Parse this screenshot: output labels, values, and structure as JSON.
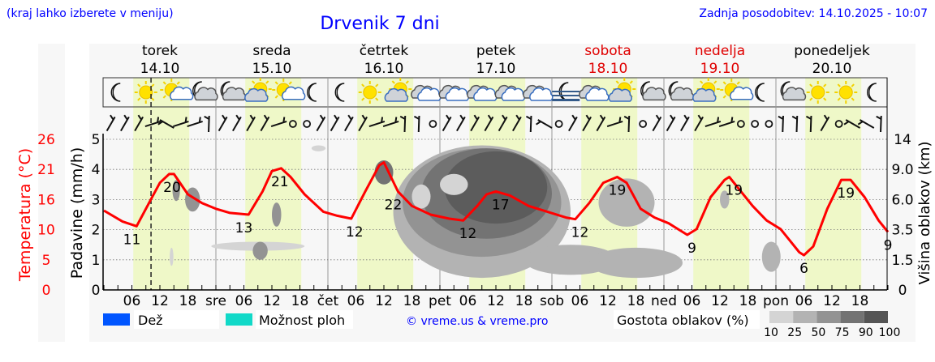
{
  "header": {
    "hint": "(kraj lahko izberete v meniju)",
    "title": "Drvenik 7 dni",
    "updated": "Zadnja posodobitev: 14.10.2025 - 10:07"
  },
  "colors": {
    "blue": "#0000ff",
    "red": "#ff0000",
    "rain": "#0055ff",
    "showers": "#11d9c8",
    "day_band": "#eff8c8",
    "panel": "#f7f7f7"
  },
  "chart_data": {
    "type": "line",
    "title": "Drvenik 7 dni",
    "now_hour": 10.1,
    "days": [
      {
        "name": "torek",
        "date": "14.10",
        "weekend": false,
        "abbr": ""
      },
      {
        "name": "sreda",
        "date": "15.10",
        "weekend": false,
        "abbr": "sre"
      },
      {
        "name": "četrtek",
        "date": "16.10",
        "weekend": false,
        "abbr": "čet"
      },
      {
        "name": "petek",
        "date": "17.10",
        "weekend": false,
        "abbr": "pet"
      },
      {
        "name": "sobota",
        "date": "18.10",
        "weekend": true,
        "abbr": "sob"
      },
      {
        "name": "nedelja",
        "date": "19.10",
        "weekend": true,
        "abbr": "ned"
      },
      {
        "name": "ponedeljek",
        "date": "20.10",
        "weekend": false,
        "abbr": "pon"
      }
    ],
    "hour_ticks": [
      "06",
      "12",
      "18"
    ],
    "y_left_temp": {
      "label": "Temperatura (°C)",
      "ticks": [
        "0",
        "5",
        "10",
        "16",
        "21",
        "26"
      ],
      "range": [
        0,
        26
      ]
    },
    "y_left_precip": {
      "label": "Padavine (mm/h)",
      "ticks": [
        "0",
        "1",
        "2",
        "3",
        "4",
        "5"
      ],
      "range": [
        0,
        5
      ]
    },
    "y_right_cloud": {
      "label": "Višina oblakov (km)",
      "ticks": [
        "0",
        "1.5",
        "3.5",
        "6.0",
        "9.0",
        "14"
      ]
    },
    "temperature": [
      [
        0,
        13.7
      ],
      [
        4,
        11.8
      ],
      [
        7,
        11
      ],
      [
        10,
        15.5
      ],
      [
        12,
        18.5
      ],
      [
        14,
        20
      ],
      [
        15,
        20
      ],
      [
        18,
        16.5
      ],
      [
        21,
        15
      ],
      [
        24,
        14
      ],
      [
        27,
        13.3
      ],
      [
        31,
        13
      ],
      [
        34,
        17
      ],
      [
        36,
        20.5
      ],
      [
        38,
        21
      ],
      [
        40,
        19.5
      ],
      [
        43,
        16.5
      ],
      [
        47,
        13.5
      ],
      [
        50,
        12.8
      ],
      [
        53,
        12.3
      ],
      [
        56,
        17
      ],
      [
        59,
        21.5
      ],
      [
        60,
        22
      ],
      [
        63,
        17
      ],
      [
        66,
        14.5
      ],
      [
        70,
        13
      ],
      [
        74,
        12.3
      ],
      [
        77,
        12
      ],
      [
        80,
        14.5
      ],
      [
        82,
        16.5
      ],
      [
        84,
        17
      ],
      [
        87,
        16.3
      ],
      [
        91,
        14.5
      ],
      [
        95,
        13.5
      ],
      [
        99,
        12.5
      ],
      [
        101,
        12.2
      ],
      [
        104,
        15
      ],
      [
        107,
        18.5
      ],
      [
        110,
        19.5
      ],
      [
        112,
        18.5
      ],
      [
        115,
        14
      ],
      [
        118,
        12.5
      ],
      [
        121,
        11.5
      ],
      [
        123,
        10.5
      ],
      [
        125,
        9.5
      ],
      [
        127,
        10.5
      ],
      [
        130,
        16
      ],
      [
        133,
        19
      ],
      [
        134,
        19.5
      ],
      [
        136,
        17.5
      ],
      [
        139,
        14.5
      ],
      [
        142,
        12
      ],
      [
        145,
        10.5
      ],
      [
        147,
        8.5
      ],
      [
        149,
        6.5
      ],
      [
        150,
        6
      ],
      [
        152,
        7.5
      ],
      [
        155,
        14
      ],
      [
        158,
        19
      ],
      [
        160,
        19
      ],
      [
        163,
        16
      ],
      [
        166,
        12
      ],
      [
        168,
        10
      ]
    ],
    "temp_labels": [
      {
        "h": 6,
        "t": "11"
      },
      {
        "h": 14.6,
        "t": "20"
      },
      {
        "h": 30,
        "t": "13"
      },
      {
        "h": 37.7,
        "t": "21"
      },
      {
        "h": 53.7,
        "t": "12"
      },
      {
        "h": 62,
        "t": "22"
      },
      {
        "h": 78,
        "t": "12"
      },
      {
        "h": 85,
        "t": "17"
      },
      {
        "h": 102,
        "t": "12"
      },
      {
        "h": 110,
        "t": "19"
      },
      {
        "h": 126,
        "t": "9"
      },
      {
        "h": 135,
        "t": "19"
      },
      {
        "h": 150,
        "t": "6"
      },
      {
        "h": 159,
        "t": "19"
      },
      {
        "h": 168,
        "t": "9"
      }
    ],
    "cloud_density": [
      {
        "h": 81,
        "y": 2.6,
        "rh": 19,
        "ry": 2.2,
        "d": 25
      },
      {
        "h": 81,
        "y": 2.9,
        "rh": 17,
        "ry": 1.8,
        "d": 50
      },
      {
        "h": 82,
        "y": 3.2,
        "rh": 14,
        "ry": 1.5,
        "d": 75
      },
      {
        "h": 84,
        "y": 3.4,
        "rh": 11,
        "ry": 1.2,
        "d": 90
      },
      {
        "h": 75,
        "y": 3.5,
        "rh": 3,
        "ry": 0.35,
        "d": 10
      },
      {
        "h": 68,
        "y": 3.1,
        "rh": 2,
        "ry": 0.4,
        "d": 10
      },
      {
        "h": 60,
        "y": 3.9,
        "rh": 2,
        "ry": 0.4,
        "d": 75
      },
      {
        "h": 100,
        "y": 1.0,
        "rh": 10,
        "ry": 0.5,
        "d": 25
      },
      {
        "h": 112,
        "y": 2.9,
        "rh": 6,
        "ry": 0.8,
        "d": 25
      },
      {
        "h": 114,
        "y": 0.9,
        "rh": 10,
        "ry": 0.5,
        "d": 25
      },
      {
        "h": 19,
        "y": 3.0,
        "rh": 1.6,
        "ry": 0.4,
        "d": 50
      },
      {
        "h": 15.5,
        "y": 3.3,
        "rh": 0.8,
        "ry": 0.35,
        "d": 50
      },
      {
        "h": 33,
        "y": 1.45,
        "rh": 10,
        "ry": 0.15,
        "d": 10
      },
      {
        "h": 33.5,
        "y": 1.3,
        "rh": 1.6,
        "ry": 0.3,
        "d": 50
      },
      {
        "h": 37,
        "y": 2.5,
        "rh": 1,
        "ry": 0.4,
        "d": 50
      },
      {
        "h": 46,
        "y": 4.7,
        "rh": 1.5,
        "ry": 0.1,
        "d": 10
      },
      {
        "h": 133,
        "y": 3.0,
        "rh": 1,
        "ry": 0.3,
        "d": 25
      },
      {
        "h": 143,
        "y": 1.1,
        "rh": 2,
        "ry": 0.5,
        "d": 25
      },
      {
        "h": 14.5,
        "y": 1.1,
        "rh": 0.4,
        "ry": 0.3,
        "d": 10
      }
    ],
    "weather_icons": [
      "moon",
      "sun",
      "sun-small-cloud",
      "moon-cloud",
      "moon-cloud",
      "cloud-sun",
      "sun-small-cloud",
      "moon",
      "moon",
      "sun",
      "cloud-sun",
      "cloudy",
      "cloudy",
      "cloudy",
      "cloudy",
      "cloudy",
      "moon-fog",
      "cloudy",
      "cloud-sun",
      "moon-cloud",
      "moon-cloud",
      "cloud-sun",
      "sun-small-cloud",
      "moon",
      "moon-cloud",
      "sun",
      "sun",
      "moon"
    ],
    "wind": [
      "/",
      "/",
      "/",
      "-",
      "\\",
      "-",
      "-",
      "|",
      "/",
      "/",
      "/",
      "/",
      "-",
      "o",
      "o",
      "/",
      "/",
      "/",
      "/",
      "-",
      "-",
      "|",
      "|",
      "o",
      "/",
      "/",
      "/",
      "/",
      "/",
      "/",
      "|",
      "\\",
      "o",
      "/",
      "/",
      "/",
      "-",
      "|",
      "o",
      "/",
      "/",
      "/",
      "/",
      "-",
      "-",
      "o",
      "o",
      "o",
      "|",
      "|",
      "|",
      "/",
      "o",
      "\\",
      "\\",
      "|"
    ]
  },
  "legend": {
    "rain": "Dež",
    "showers": "Možnost ploh",
    "copyright": "© vreme.us & vreme.pro",
    "cloud_density": "Gostota oblakov (%)",
    "density_levels": [
      "10",
      "25",
      "50",
      "75",
      "90",
      "100"
    ]
  }
}
